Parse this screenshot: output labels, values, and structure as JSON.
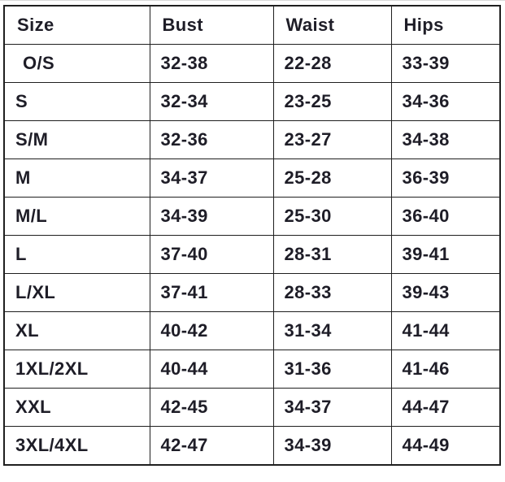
{
  "chart_data": {
    "type": "table",
    "columns": [
      "Size",
      "Bust",
      "Waist",
      "Hips"
    ],
    "rows": [
      [
        "O/S",
        "32-38",
        "22-28",
        "33-39"
      ],
      [
        "S",
        "32-34",
        "23-25",
        "34-36"
      ],
      [
        "S/M",
        "32-36",
        "23-27",
        "34-38"
      ],
      [
        "M",
        "34-37",
        "25-28",
        "36-39"
      ],
      [
        "M/L",
        "34-39",
        "25-30",
        "36-40"
      ],
      [
        "L",
        "37-40",
        "28-31",
        "39-41"
      ],
      [
        "L/XL",
        "37-41",
        "28-33",
        "39-43"
      ],
      [
        "XL",
        "40-42",
        "31-34",
        "41-44"
      ],
      [
        "1XL/2XL",
        "40-44",
        "31-36",
        "41-46"
      ],
      [
        "XXL",
        "42-45",
        "34-37",
        "44-47"
      ],
      [
        "3XL/4XL",
        "42-47",
        "34-39",
        "44-49"
      ]
    ]
  },
  "colors": {
    "border": "#1f1f1f",
    "text": "#1e1d27",
    "background": "#ffffff",
    "top_hairline": "#d9d9d9"
  }
}
